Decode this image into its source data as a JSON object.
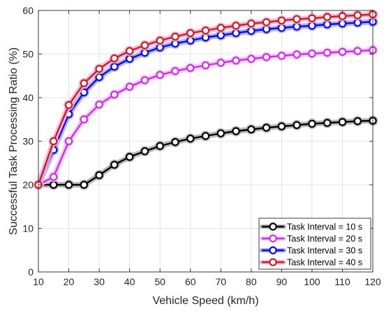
{
  "chart_data": {
    "type": "line",
    "xlabel": "Vehicle Speed (km/h)",
    "ylabel": "Successful Task Processing Ratio (%)",
    "xlim": [
      10,
      120
    ],
    "ylim": [
      0,
      60
    ],
    "xticks": [
      10,
      20,
      30,
      40,
      50,
      60,
      70,
      80,
      90,
      100,
      110,
      120
    ],
    "yticks": [
      0,
      10,
      20,
      30,
      40,
      50,
      60
    ],
    "grid": true,
    "legend_position": "bottom-right",
    "x": [
      10,
      15,
      20,
      25,
      30,
      35,
      40,
      45,
      50,
      55,
      60,
      65,
      70,
      75,
      80,
      85,
      90,
      95,
      100,
      105,
      110,
      115,
      120
    ],
    "series": [
      {
        "name": "Task Interval = 10 s",
        "color": "#000000",
        "glow": "#b0b0b0",
        "values": [
          20,
          20,
          20,
          20,
          22.2,
          24.6,
          26.4,
          27.7,
          28.9,
          29.8,
          30.6,
          31.2,
          31.8,
          32.3,
          32.7,
          33.1,
          33.4,
          33.7,
          34,
          34.2,
          34.4,
          34.6,
          34.7
        ]
      },
      {
        "name": "Task Interval = 20 s",
        "color": "#c833e0",
        "glow": "#f4c2ff",
        "values": [
          20,
          21.8,
          30,
          35,
          38.4,
          40.7,
          42.5,
          44,
          45.2,
          46.1,
          46.8,
          47.4,
          48,
          48.5,
          48.9,
          49.3,
          49.6,
          49.9,
          50.1,
          50.3,
          50.5,
          50.7,
          50.9
        ]
      },
      {
        "name": "Task Interval = 30 s",
        "color": "#0d0ddb",
        "glow": "#a6a6ff",
        "values": [
          20,
          28,
          36.2,
          41.2,
          44.7,
          47.1,
          48.9,
          50.3,
          51.5,
          52.4,
          53.1,
          53.8,
          54.3,
          54.8,
          55.3,
          55.7,
          56,
          56.3,
          56.5,
          56.8,
          57,
          57.2,
          57.4
        ]
      },
      {
        "name": "Task Interval = 40 s",
        "color": "#c42222",
        "glow": "#ffb0d8",
        "values": [
          20,
          30,
          38.3,
          43.3,
          46.6,
          49,
          50.7,
          52,
          53.1,
          54,
          54.8,
          55.4,
          56,
          56.5,
          57,
          57.3,
          57.7,
          58,
          58.2,
          58.5,
          58.7,
          58.9,
          59.1
        ]
      }
    ]
  }
}
